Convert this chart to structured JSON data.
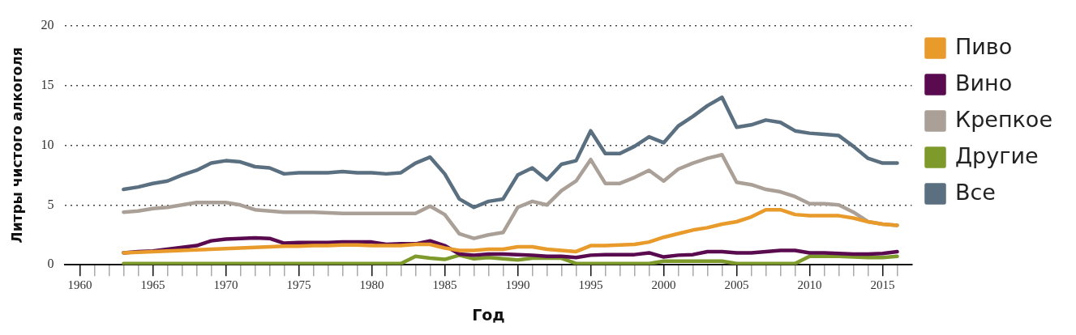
{
  "chart_data": {
    "type": "line",
    "xlabel": "Год",
    "ylabel": "Литры чистого алкоголя",
    "x": [
      1963,
      1964,
      1965,
      1966,
      1967,
      1968,
      1969,
      1970,
      1971,
      1972,
      1973,
      1974,
      1975,
      1976,
      1977,
      1978,
      1979,
      1980,
      1981,
      1982,
      1983,
      1984,
      1985,
      1986,
      1987,
      1988,
      1989,
      1990,
      1991,
      1992,
      1993,
      1994,
      1995,
      1996,
      1997,
      1998,
      1999,
      2000,
      2001,
      2002,
      2003,
      2004,
      2005,
      2006,
      2007,
      2008,
      2009,
      2010,
      2011,
      2012,
      2013,
      2014,
      2015,
      2016
    ],
    "series": [
      {
        "name": "Пиво",
        "color": "#e89b2a",
        "values": [
          1.0,
          1.05,
          1.1,
          1.15,
          1.2,
          1.25,
          1.3,
          1.35,
          1.4,
          1.45,
          1.5,
          1.55,
          1.55,
          1.6,
          1.6,
          1.65,
          1.65,
          1.6,
          1.6,
          1.6,
          1.7,
          1.7,
          1.4,
          1.2,
          1.2,
          1.3,
          1.3,
          1.5,
          1.5,
          1.3,
          1.2,
          1.1,
          1.6,
          1.6,
          1.65,
          1.7,
          1.9,
          2.3,
          2.6,
          2.9,
          3.1,
          3.4,
          3.6,
          4.0,
          4.6,
          4.6,
          4.2,
          4.1,
          4.1,
          4.1,
          3.9,
          3.6,
          3.4,
          3.3
        ]
      },
      {
        "name": "Вино",
        "color": "#5a0a4f",
        "values": [
          1.0,
          1.1,
          1.15,
          1.3,
          1.45,
          1.6,
          2.0,
          2.15,
          2.2,
          2.25,
          2.2,
          1.8,
          1.85,
          1.85,
          1.85,
          1.9,
          1.9,
          1.9,
          1.7,
          1.75,
          1.75,
          2.0,
          1.6,
          0.9,
          0.8,
          0.9,
          0.9,
          0.85,
          0.8,
          0.7,
          0.7,
          0.6,
          0.8,
          0.85,
          0.85,
          0.85,
          1.0,
          0.65,
          0.8,
          0.85,
          1.1,
          1.1,
          1.0,
          1.0,
          1.1,
          1.2,
          1.2,
          1.0,
          1.0,
          0.95,
          0.9,
          0.9,
          0.95,
          1.1
        ]
      },
      {
        "name": "Крепкое",
        "color": "#aaa097",
        "values": [
          4.4,
          4.5,
          4.7,
          4.8,
          5.0,
          5.2,
          5.2,
          5.2,
          5.0,
          4.6,
          4.5,
          4.4,
          4.4,
          4.4,
          4.35,
          4.3,
          4.3,
          4.3,
          4.3,
          4.3,
          4.3,
          4.9,
          4.2,
          2.6,
          2.2,
          2.5,
          2.7,
          4.8,
          5.3,
          5.0,
          6.2,
          7.0,
          8.8,
          6.8,
          6.8,
          7.3,
          7.9,
          7.0,
          8.0,
          8.5,
          8.9,
          9.2,
          6.9,
          6.7,
          6.3,
          6.1,
          5.7,
          5.1,
          5.1,
          5.0,
          4.4,
          3.6,
          3.4,
          3.3
        ]
      },
      {
        "name": "Другие",
        "color": "#7d9a2a",
        "values": [
          0.1,
          0.1,
          0.1,
          0.1,
          0.1,
          0.1,
          0.1,
          0.1,
          0.1,
          0.1,
          0.1,
          0.1,
          0.1,
          0.1,
          0.1,
          0.1,
          0.1,
          0.1,
          0.1,
          0.1,
          0.7,
          0.55,
          0.45,
          0.8,
          0.5,
          0.6,
          0.5,
          0.4,
          0.55,
          0.55,
          0.55,
          0.1,
          0.1,
          0.1,
          0.1,
          0.1,
          0.1,
          0.3,
          0.3,
          0.3,
          0.3,
          0.3,
          0.1,
          0.1,
          0.1,
          0.1,
          0.1,
          0.7,
          0.7,
          0.7,
          0.65,
          0.6,
          0.6,
          0.7
        ]
      },
      {
        "name": "Все",
        "color": "#5a7080",
        "values": [
          6.3,
          6.5,
          6.8,
          7.0,
          7.5,
          7.9,
          8.5,
          8.7,
          8.6,
          8.2,
          8.1,
          7.6,
          7.7,
          7.7,
          7.7,
          7.8,
          7.7,
          7.7,
          7.6,
          7.7,
          8.5,
          9.0,
          7.6,
          5.5,
          4.8,
          5.3,
          5.5,
          7.5,
          8.1,
          7.1,
          8.4,
          8.7,
          11.2,
          9.3,
          9.3,
          9.9,
          10.7,
          10.2,
          11.6,
          12.4,
          13.3,
          14.0,
          11.5,
          11.7,
          12.1,
          11.9,
          11.2,
          11.0,
          10.9,
          10.8,
          9.9,
          8.9,
          8.5,
          8.5
        ]
      }
    ],
    "xlim": [
      1959,
      2017
    ],
    "xticks": [
      1960,
      {
        "value": 1961,
        "label": null
      },
      {
        "value": 1962,
        "label": null
      },
      {
        "value": 1963,
        "label": null
      },
      {
        "value": 1964,
        "label": null
      },
      1965,
      {
        "value": 1966,
        "label": null
      },
      {
        "value": 1967,
        "label": null
      },
      {
        "value": 1968,
        "label": null
      },
      {
        "value": 1969,
        "label": null
      },
      1970,
      {
        "value": 1971,
        "label": null
      },
      {
        "value": 1972,
        "label": null
      },
      {
        "value": 1973,
        "label": null
      },
      {
        "value": 1974,
        "label": null
      },
      1975,
      {
        "value": 1976,
        "label": null
      },
      {
        "value": 1977,
        "label": null
      },
      {
        "value": 1978,
        "label": null
      },
      {
        "value": 1979,
        "label": null
      },
      1980,
      {
        "value": 1981,
        "label": null
      },
      {
        "value": 1982,
        "label": null
      },
      {
        "value": 1983,
        "label": null
      },
      {
        "value": 1984,
        "label": null
      },
      1985,
      {
        "value": 1986,
        "label": null
      },
      {
        "value": 1987,
        "label": null
      },
      {
        "value": 1988,
        "label": null
      },
      {
        "value": 1989,
        "label": null
      },
      1990,
      {
        "value": 1991,
        "label": null
      },
      {
        "value": 1992,
        "label": null
      },
      {
        "value": 1993,
        "label": null
      },
      {
        "value": 1994,
        "label": null
      },
      1995,
      {
        "value": 1996,
        "label": null
      },
      {
        "value": 1997,
        "label": null
      },
      {
        "value": 1998,
        "label": null
      },
      {
        "value": 1999,
        "label": null
      },
      2000,
      {
        "value": 2001,
        "label": null
      },
      {
        "value": 2002,
        "label": null
      },
      {
        "value": 2003,
        "label": null
      },
      {
        "value": 2004,
        "label": null
      },
      2005,
      {
        "value": 2006,
        "label": null
      },
      {
        "value": 2007,
        "label": null
      },
      {
        "value": 2008,
        "label": null
      },
      {
        "value": 2009,
        "label": null
      },
      2010,
      {
        "value": 2011,
        "label": null
      },
      {
        "value": 2012,
        "label": null
      },
      {
        "value": 2013,
        "label": null
      },
      {
        "value": 2014,
        "label": null
      },
      2015,
      {
        "value": 2016,
        "label": null
      }
    ],
    "ylim": [
      0,
      20
    ],
    "yticks": [
      0,
      5,
      10,
      15,
      20
    ],
    "grid": "y",
    "legend": "right",
    "marker": "none",
    "line_style": "solid"
  }
}
